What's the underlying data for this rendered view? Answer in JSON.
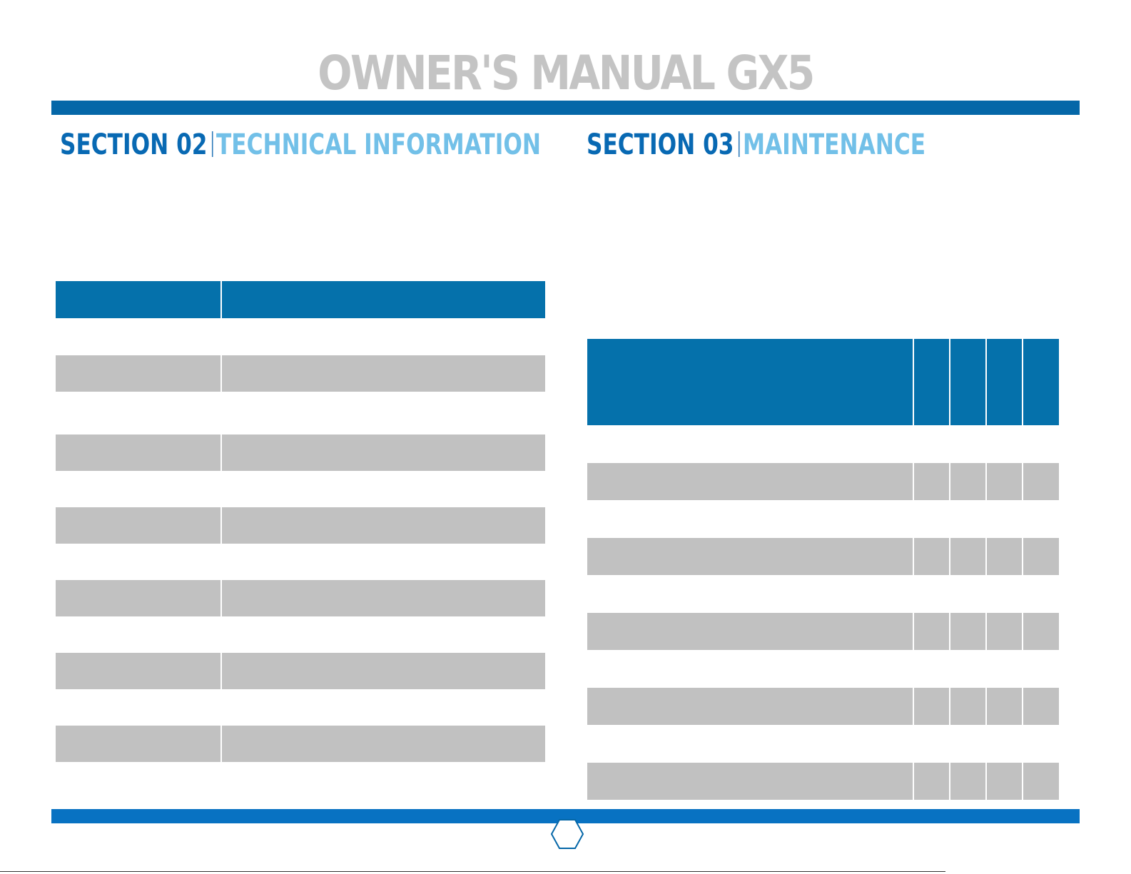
{
  "document": {
    "title": "OWNER'S MANUAL GX5",
    "page_number": ""
  },
  "sections": [
    {
      "number": "SECTION 02",
      "name": "TECHNICAL INFORMATION"
    },
    {
      "number": "SECTION 03",
      "name": "MAINTENANCE"
    }
  ],
  "tech_table": {
    "rows": [
      {
        "label": "",
        "value": "",
        "shaded": false
      },
      {
        "label": "",
        "value": "",
        "shaded": true
      },
      {
        "label": "",
        "value": "",
        "shaded": false
      },
      {
        "label": "",
        "value": "",
        "shaded": true
      },
      {
        "label": "",
        "value": "",
        "shaded": false
      },
      {
        "label": "",
        "value": "",
        "shaded": true
      },
      {
        "label": "",
        "value": "",
        "shaded": false
      },
      {
        "label": "",
        "value": "",
        "shaded": true
      },
      {
        "label": "",
        "value": "",
        "shaded": false
      },
      {
        "label": "",
        "value": "",
        "shaded": true
      },
      {
        "label": "",
        "value": "",
        "shaded": false
      },
      {
        "label": "",
        "value": "",
        "shaded": true
      },
      {
        "label": "",
        "value": "",
        "shaded": false
      }
    ]
  },
  "maintenance_table": {
    "rows": [
      {
        "shaded": false
      },
      {
        "shaded": true
      },
      {
        "shaded": false
      },
      {
        "shaded": true
      },
      {
        "shaded": false
      },
      {
        "shaded": true
      },
      {
        "shaded": false
      },
      {
        "shaded": true
      },
      {
        "shaded": false
      },
      {
        "shaded": true
      }
    ]
  },
  "colors": {
    "accent_dark": "#0567a8",
    "accent_light": "#72c0e8",
    "table_header": "#0571ab",
    "row_shade": "#c1c1c1",
    "title_gray": "#c4c4c4"
  }
}
